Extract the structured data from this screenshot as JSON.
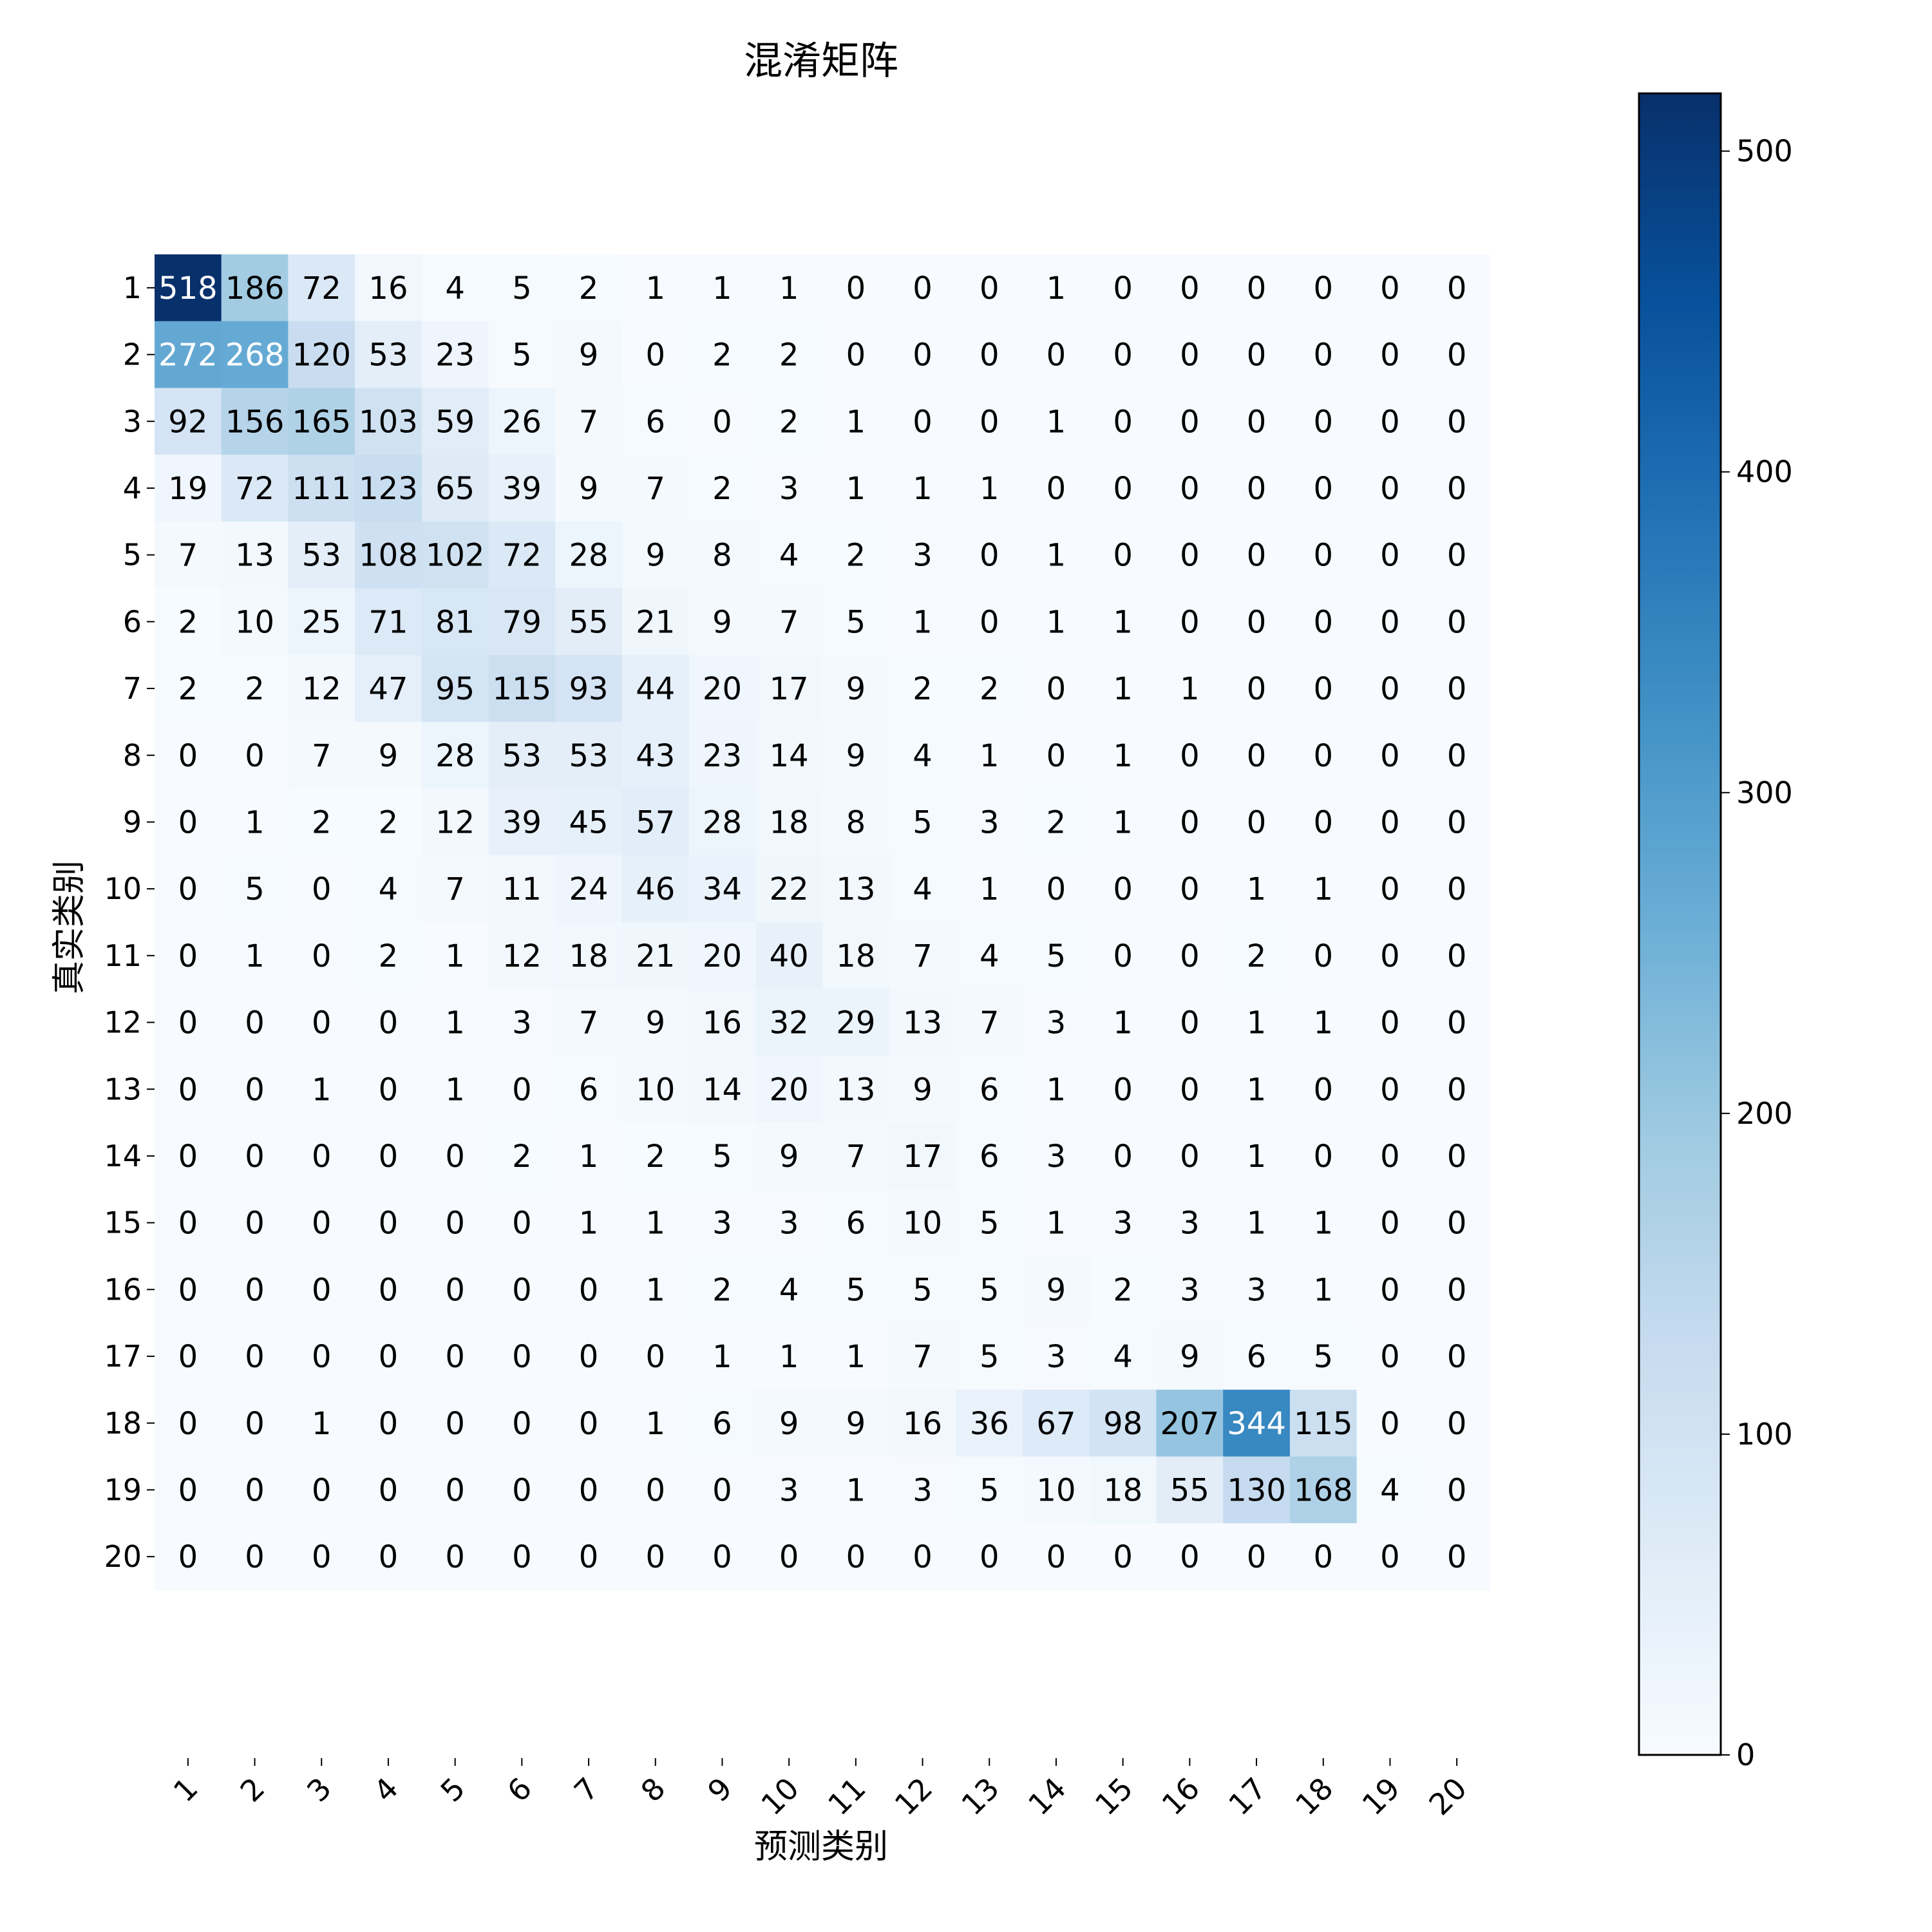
{
  "chart_data": {
    "type": "heatmap",
    "title": "混淆矩阵",
    "xlabel": "预测类别",
    "ylabel": "真实类别",
    "x_categories": [
      "1",
      "2",
      "3",
      "4",
      "5",
      "6",
      "7",
      "8",
      "9",
      "10",
      "11",
      "12",
      "13",
      "14",
      "15",
      "16",
      "17",
      "18",
      "19",
      "20"
    ],
    "y_categories": [
      "1",
      "2",
      "3",
      "4",
      "5",
      "6",
      "7",
      "8",
      "9",
      "10",
      "11",
      "12",
      "13",
      "14",
      "15",
      "16",
      "17",
      "18",
      "19",
      "20"
    ],
    "matrix": [
      [
        518,
        186,
        72,
        16,
        4,
        5,
        2,
        1,
        1,
        1,
        0,
        0,
        0,
        1,
        0,
        0,
        0,
        0,
        0,
        0
      ],
      [
        272,
        268,
        120,
        53,
        23,
        5,
        9,
        0,
        2,
        2,
        0,
        0,
        0,
        0,
        0,
        0,
        0,
        0,
        0,
        0
      ],
      [
        92,
        156,
        165,
        103,
        59,
        26,
        7,
        6,
        0,
        2,
        1,
        0,
        0,
        1,
        0,
        0,
        0,
        0,
        0,
        0
      ],
      [
        19,
        72,
        111,
        123,
        65,
        39,
        9,
        7,
        2,
        3,
        1,
        1,
        1,
        0,
        0,
        0,
        0,
        0,
        0,
        0
      ],
      [
        7,
        13,
        53,
        108,
        102,
        72,
        28,
        9,
        8,
        4,
        2,
        3,
        0,
        1,
        0,
        0,
        0,
        0,
        0,
        0
      ],
      [
        2,
        10,
        25,
        71,
        81,
        79,
        55,
        21,
        9,
        7,
        5,
        1,
        0,
        1,
        1,
        0,
        0,
        0,
        0,
        0
      ],
      [
        2,
        2,
        12,
        47,
        95,
        115,
        93,
        44,
        20,
        17,
        9,
        2,
        2,
        0,
        1,
        1,
        0,
        0,
        0,
        0
      ],
      [
        0,
        0,
        7,
        9,
        28,
        53,
        53,
        43,
        23,
        14,
        9,
        4,
        1,
        0,
        1,
        0,
        0,
        0,
        0,
        0
      ],
      [
        0,
        1,
        2,
        2,
        12,
        39,
        45,
        57,
        28,
        18,
        8,
        5,
        3,
        2,
        1,
        0,
        0,
        0,
        0,
        0
      ],
      [
        0,
        5,
        0,
        4,
        7,
        11,
        24,
        46,
        34,
        22,
        13,
        4,
        1,
        0,
        0,
        0,
        1,
        1,
        0,
        0
      ],
      [
        0,
        1,
        0,
        2,
        1,
        12,
        18,
        21,
        20,
        40,
        18,
        7,
        4,
        5,
        0,
        0,
        2,
        0,
        0,
        0
      ],
      [
        0,
        0,
        0,
        0,
        1,
        3,
        7,
        9,
        16,
        32,
        29,
        13,
        7,
        3,
        1,
        0,
        1,
        1,
        0,
        0
      ],
      [
        0,
        0,
        1,
        0,
        1,
        0,
        6,
        10,
        14,
        20,
        13,
        9,
        6,
        1,
        0,
        0,
        1,
        0,
        0,
        0
      ],
      [
        0,
        0,
        0,
        0,
        0,
        2,
        1,
        2,
        5,
        9,
        7,
        17,
        6,
        3,
        0,
        0,
        1,
        0,
        0,
        0
      ],
      [
        0,
        0,
        0,
        0,
        0,
        0,
        1,
        1,
        3,
        3,
        6,
        10,
        5,
        1,
        3,
        3,
        1,
        1,
        0,
        0
      ],
      [
        0,
        0,
        0,
        0,
        0,
        0,
        0,
        1,
        2,
        4,
        5,
        5,
        5,
        9,
        2,
        3,
        3,
        1,
        0,
        0
      ],
      [
        0,
        0,
        0,
        0,
        0,
        0,
        0,
        0,
        1,
        1,
        1,
        7,
        5,
        3,
        4,
        9,
        6,
        5,
        0,
        0
      ],
      [
        0,
        0,
        1,
        0,
        0,
        0,
        0,
        1,
        6,
        9,
        9,
        16,
        36,
        67,
        98,
        207,
        344,
        115,
        0,
        0
      ],
      [
        0,
        0,
        0,
        0,
        0,
        0,
        0,
        0,
        0,
        3,
        1,
        3,
        5,
        10,
        18,
        55,
        130,
        168,
        4,
        0
      ],
      [
        0,
        0,
        0,
        0,
        0,
        0,
        0,
        0,
        0,
        0,
        0,
        0,
        0,
        0,
        0,
        0,
        0,
        0,
        0,
        0
      ]
    ],
    "colormap": "Blues",
    "vmin": 0,
    "vmax": 518,
    "colorbar_ticks": [
      0,
      100,
      200,
      300,
      400,
      500
    ],
    "annotations": true
  }
}
